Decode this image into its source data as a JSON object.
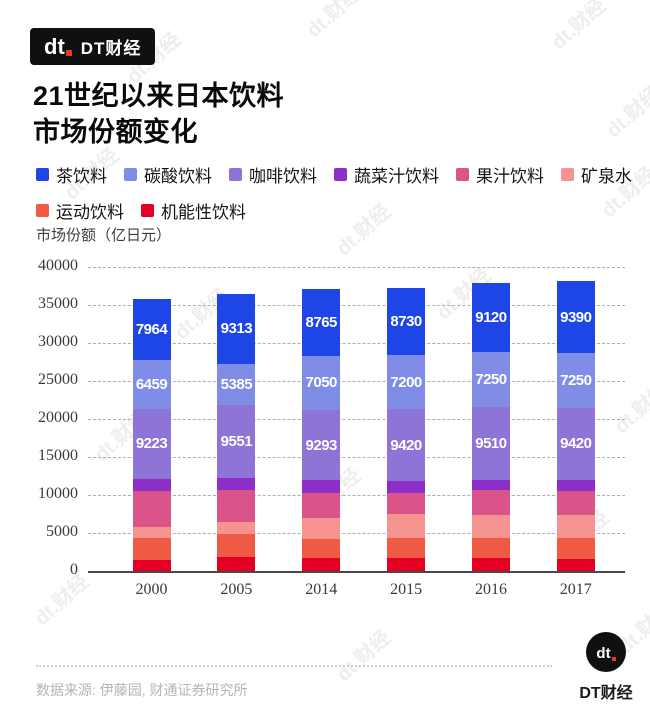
{
  "header": {
    "logo_mark": "dt",
    "brand": "DT财经"
  },
  "title": {
    "line1": "21世纪以来日本饮料",
    "line2": "市场份额变化"
  },
  "watermark_text": "dt.财经",
  "chart_data": {
    "type": "bar",
    "stacked": true,
    "title": "21世纪以来日本饮料市场份额变化",
    "ylabel": "市场份额（亿日元）",
    "xlabel": "",
    "ylim": [
      0,
      40000
    ],
    "ytick_step": 5000,
    "ytick_labels": [
      "0",
      "5000",
      "10000",
      "15000",
      "20000",
      "25000",
      "30000",
      "35000",
      "40000"
    ],
    "grid": "horizontal dashed",
    "legend_position": "top",
    "stack_order": "first series rendered on top of each bar",
    "categories": [
      "2000",
      "2005",
      "2014",
      "2015",
      "2016",
      "2017"
    ],
    "series": [
      {
        "name": "茶饮料",
        "color": "#1E46E6",
        "labels_shown": true,
        "values": [
          7964,
          9313,
          8765,
          8730,
          9120,
          9390
        ]
      },
      {
        "name": "碳酸饮料",
        "color": "#7F8DE6",
        "labels_shown": true,
        "values": [
          6459,
          5385,
          7050,
          7200,
          7250,
          7250
        ]
      },
      {
        "name": "咖啡饮料",
        "color": "#8E74D6",
        "labels_shown": true,
        "values": [
          9223,
          9551,
          9293,
          9420,
          9510,
          9420
        ]
      },
      {
        "name": "蔬菜汁饮料",
        "color": "#8C2FC8",
        "labels_shown": false,
        "values": [
          1600,
          1600,
          1600,
          1500,
          1400,
          1500
        ]
      },
      {
        "name": "果汁饮料",
        "color": "#DA5389",
        "labels_shown": false,
        "values": [
          4700,
          4200,
          3400,
          2800,
          3200,
          3200
        ]
      },
      {
        "name": "矿泉水",
        "color": "#F4938F",
        "labels_shown": false,
        "values": [
          1400,
          1600,
          2700,
          3100,
          3000,
          3000
        ]
      },
      {
        "name": "运动饮料",
        "color": "#EF5A45",
        "labels_shown": false,
        "values": [
          3000,
          3000,
          2500,
          2700,
          2700,
          2700
        ]
      },
      {
        "name": "机能性饮料",
        "color": "#E50023",
        "labels_shown": false,
        "values": [
          1400,
          1800,
          1700,
          1700,
          1700,
          1600
        ]
      }
    ],
    "note": "values without labels_shown are estimated from bar heights against the gridlines"
  },
  "footer": {
    "source": "数据来源: 伊藤园, 财通证券研究所",
    "brand": "DT财经",
    "logo_mark": "dt"
  }
}
